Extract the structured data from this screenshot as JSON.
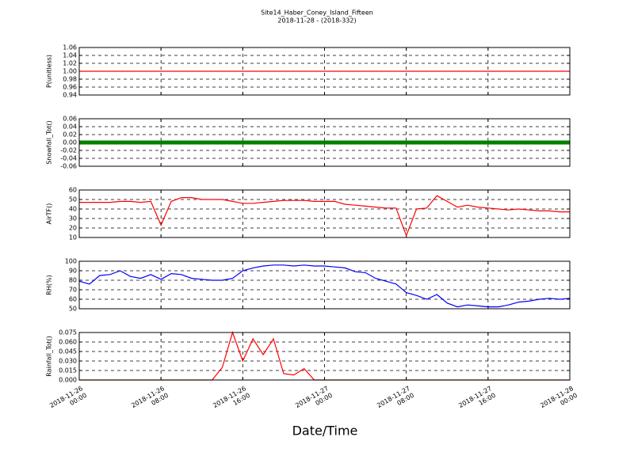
{
  "title": "Site14_Haber_Coney_Island_Fifteen",
  "subtitle": "2018-11-28 - (2018-332)",
  "x_label": "Date/Time",
  "xlim": [
    "2018-11-26 00:00",
    "2018-11-28 00:00"
  ],
  "xticks": [
    {
      "value": "2018-11-26 00:00",
      "label": "2018-11-26\n00:00"
    },
    {
      "value": "2018-11-26 08:00",
      "label": "2018-11-26\n08:00"
    },
    {
      "value": "2018-11-26 16:00",
      "label": "2018-11-26\n16:00"
    },
    {
      "value": "2018-11-27 00:00",
      "label": "2018-11-27\n00:00"
    },
    {
      "value": "2018-11-27 08:00",
      "label": "2018-11-27\n08:00"
    },
    {
      "value": "2018-11-27 16:00",
      "label": "2018-11-27\n16:00"
    },
    {
      "value": "2018-11-28 00:00",
      "label": "2018-11-28\n00:00"
    }
  ],
  "x": [
    "2018-11-26 00:00",
    "2018-11-26 01:00",
    "2018-11-26 02:00",
    "2018-11-26 03:00",
    "2018-11-26 04:00",
    "2018-11-26 05:00",
    "2018-11-26 06:00",
    "2018-11-26 07:00",
    "2018-11-26 08:00",
    "2018-11-26 09:00",
    "2018-11-26 10:00",
    "2018-11-26 11:00",
    "2018-11-26 12:00",
    "2018-11-26 13:00",
    "2018-11-26 14:00",
    "2018-11-26 15:00",
    "2018-11-26 16:00",
    "2018-11-26 17:00",
    "2018-11-26 18:00",
    "2018-11-26 19:00",
    "2018-11-26 20:00",
    "2018-11-26 21:00",
    "2018-11-26 22:00",
    "2018-11-26 23:00",
    "2018-11-27 00:00",
    "2018-11-27 01:00",
    "2018-11-27 02:00",
    "2018-11-27 03:00",
    "2018-11-27 04:00",
    "2018-11-27 05:00",
    "2018-11-27 06:00",
    "2018-11-27 07:00",
    "2018-11-27 08:00",
    "2018-11-27 09:00",
    "2018-11-27 10:00",
    "2018-11-27 11:00",
    "2018-11-27 12:00",
    "2018-11-27 13:00",
    "2018-11-27 14:00",
    "2018-11-27 15:00",
    "2018-11-27 16:00",
    "2018-11-27 17:00",
    "2018-11-27 18:00",
    "2018-11-27 19:00",
    "2018-11-27 20:00",
    "2018-11-27 21:00",
    "2018-11-27 22:00",
    "2018-11-27 23:00",
    "2018-11-28 00:00"
  ],
  "chart_data": [
    {
      "type": "line",
      "y_label": "P(unitless)",
      "grid": true,
      "ylim": [
        0.94,
        1.06
      ],
      "yticks": [
        0.94,
        0.96,
        0.98,
        {
          "value": 1.0,
          "label": "1.00"
        },
        1.02,
        1.04,
        1.06
      ],
      "series": [
        {
          "color": "#ff0000",
          "values": [
            1,
            1,
            1,
            1,
            1,
            1,
            1,
            1,
            1,
            1,
            1,
            1,
            1,
            1,
            1,
            1,
            1,
            1,
            1,
            1,
            1,
            1,
            1,
            1,
            1,
            1,
            1,
            1,
            1,
            1,
            1,
            1,
            1,
            1,
            1,
            1,
            1,
            1,
            1,
            1,
            1,
            1,
            1,
            1,
            1,
            1,
            1,
            1,
            1
          ]
        }
      ]
    },
    {
      "type": "line",
      "y_label": "Snowfall_Tot()",
      "grid": true,
      "ylim": [
        -0.06,
        0.06
      ],
      "yticks": [
        -0.06,
        -0.04,
        -0.02,
        {
          "value": 0,
          "label": "0.00"
        },
        0.02,
        0.04,
        0.06
      ],
      "series": [
        {
          "color": "#008000",
          "marker": "o",
          "values": [
            0,
            0,
            0,
            0,
            0,
            0,
            0,
            0,
            0,
            0,
            0,
            0,
            0,
            0,
            0,
            0,
            0,
            0,
            0,
            0,
            0,
            0,
            0,
            0,
            0,
            0,
            0,
            0,
            0,
            0,
            0,
            0,
            0,
            0,
            0,
            0,
            0,
            0,
            0,
            0,
            0,
            0,
            0,
            0,
            0,
            0,
            0,
            0,
            0
          ]
        }
      ]
    },
    {
      "type": "line",
      "y_label": "AirTF()",
      "grid": true,
      "ylim": [
        10,
        60
      ],
      "yticks": [
        10,
        20,
        30,
        40,
        50,
        60
      ],
      "series": [
        {
          "color": "#ff0000",
          "values": [
            47,
            47,
            47,
            47,
            48,
            48,
            47,
            48,
            23,
            48,
            52,
            52,
            50,
            50,
            50,
            48,
            46,
            46,
            47,
            48,
            49,
            49,
            49,
            48,
            48,
            48,
            45,
            44,
            43,
            42,
            41,
            41,
            12,
            40,
            41,
            54,
            48,
            42,
            44,
            42,
            41,
            40,
            39,
            40,
            39,
            38,
            38,
            37,
            37
          ]
        }
      ]
    },
    {
      "type": "line",
      "y_label": "RH(%)",
      "grid": true,
      "ylim": [
        50,
        100
      ],
      "yticks": [
        50,
        60,
        70,
        80,
        90,
        100
      ],
      "series": [
        {
          "color": "#0000ff",
          "values": [
            79,
            76,
            85,
            86,
            90,
            84,
            82,
            86,
            81,
            87,
            86,
            82,
            81,
            80,
            80,
            82,
            90,
            93,
            95,
            96,
            96,
            95,
            96,
            95,
            95,
            94,
            93,
            89,
            88,
            82,
            79,
            76,
            67,
            64,
            60,
            65,
            56,
            52,
            54,
            53,
            52,
            52,
            54,
            57,
            58,
            60,
            61,
            60,
            61
          ]
        }
      ]
    },
    {
      "type": "line",
      "y_label": "Rainfall_Tot()",
      "grid": true,
      "ylim": [
        0,
        0.075
      ],
      "yticks": [
        {
          "value": 0,
          "label": "0.000"
        },
        {
          "value": 0.015,
          "label": "0.015"
        },
        {
          "value": 0.03,
          "label": "0.030"
        },
        {
          "value": 0.045,
          "label": "0.045"
        },
        {
          "value": 0.06,
          "label": "0.060"
        },
        {
          "value": 0.075,
          "label": "0.075"
        }
      ],
      "series": [
        {
          "color": "#ff0000",
          "values": [
            0,
            0,
            0,
            0,
            0,
            0,
            0,
            0,
            0,
            0,
            0,
            0,
            0,
            0,
            0.02,
            0.075,
            0.03,
            0.065,
            0.04,
            0.065,
            0.01,
            0.008,
            0.018,
            0,
            0,
            0,
            0,
            0,
            0,
            0,
            0,
            0,
            0,
            0,
            0,
            0,
            0,
            0,
            0,
            0,
            0,
            0,
            0,
            0,
            0,
            0,
            0,
            0,
            0
          ]
        }
      ]
    }
  ]
}
